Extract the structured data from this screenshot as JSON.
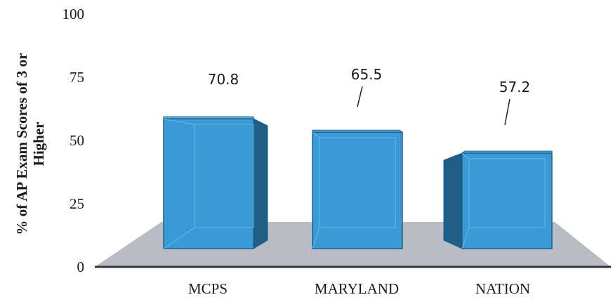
{
  "chart_data": {
    "type": "bar",
    "style": "3d-column",
    "categories": [
      "MCPS",
      "MARYLAND",
      "NATION"
    ],
    "series": [
      {
        "values": [
          70.8,
          65.5,
          57.2
        ]
      }
    ],
    "data_labels": [
      "70.8",
      "65.5",
      "57.2"
    ],
    "title": "",
    "xlabel": "",
    "ylabel_lines": [
      "% of AP Exam Scores of 3 or",
      "Higher"
    ],
    "ylim": [
      0,
      100
    ],
    "yticks": [
      0,
      25,
      50,
      75,
      100
    ],
    "grid": false,
    "legend": "none",
    "colors": {
      "bar_front": "#3a9ad6",
      "bar_side": "#1f5f86",
      "bar_top": "#5cb2e6",
      "bar_edge": "#1e5f8f",
      "floor": "#b9bcc4",
      "axis": "#333333"
    }
  }
}
